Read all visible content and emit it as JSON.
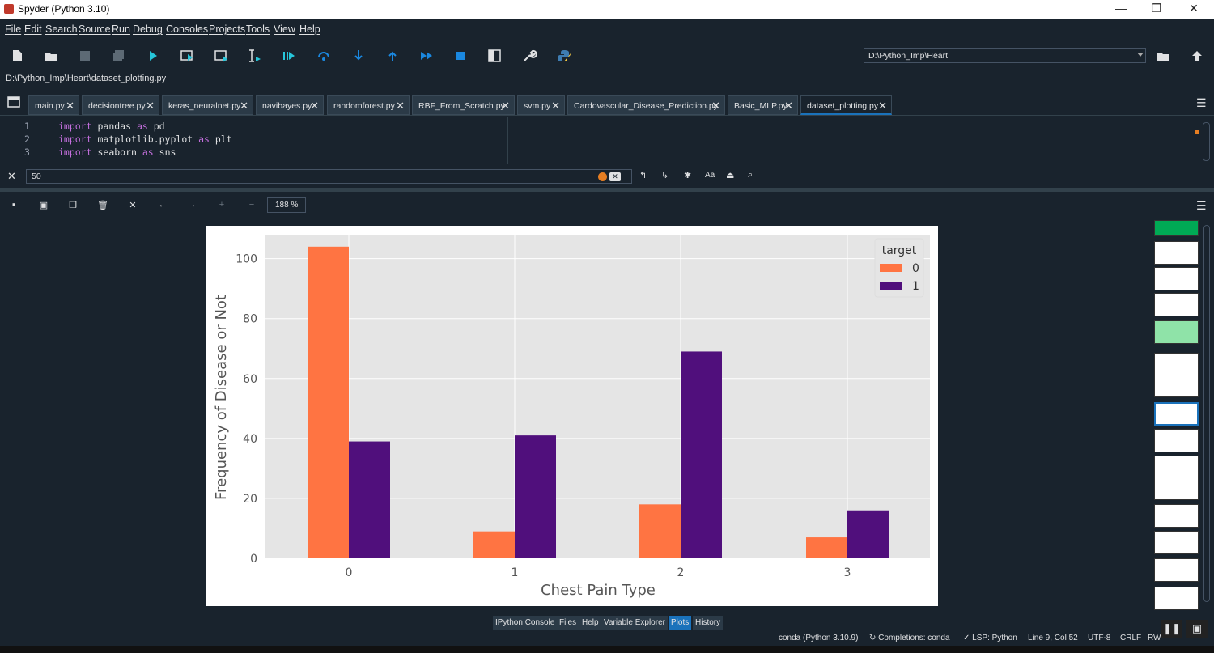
{
  "window": {
    "title": "Spyder (Python 3.10)"
  },
  "menu": [
    "File",
    "Edit",
    "Search",
    "Source",
    "Run",
    "Debug",
    "Consoles",
    "Projects",
    "Tools",
    "View",
    "Help"
  ],
  "toolbar": {
    "working_dir": "D:\\Python_Imp\\Heart"
  },
  "editor": {
    "file_path": "D:\\Python_Imp\\Heart\\dataset_plotting.py",
    "tabs": [
      "main.py",
      "decisiontree.py",
      "keras_neuralnet.py",
      "navibayes.py",
      "randomforest.py",
      "RBF_From_Scratch.py",
      "svm.py",
      "Cardovascular_Disease_Prediction.py",
      "Basic_MLP.py",
      "dataset_plotting.py"
    ],
    "active_tab": "dataset_plotting.py",
    "line_numbers": [
      "1",
      "2",
      "3"
    ],
    "lines": [
      {
        "kw1": "import",
        "mod": " pandas ",
        "kw2": "as",
        "alias": " pd"
      },
      {
        "kw1": "import",
        "mod": " matplotlib.pyplot ",
        "kw2": "as",
        "alias": " plt"
      },
      {
        "kw1": "import",
        "mod": " seaborn ",
        "kw2": "as",
        "alias": " sns"
      }
    ]
  },
  "find": {
    "value": "50",
    "case_label": "Aa"
  },
  "plots": {
    "zoom": "188 %"
  },
  "chart_data": {
    "type": "bar",
    "title": "",
    "xlabel": "Chest Pain Type",
    "ylabel": "Frequency of Disease or Not",
    "categories": [
      "0",
      "1",
      "2",
      "3"
    ],
    "series": [
      {
        "name": "0",
        "color": "#ff7442",
        "values": [
          104,
          9,
          18,
          7
        ]
      },
      {
        "name": "1",
        "color": "#500f7c",
        "values": [
          39,
          41,
          69,
          16
        ]
      }
    ],
    "ylim": [
      0,
      108
    ],
    "yticks": [
      0,
      20,
      40,
      60,
      80,
      100
    ],
    "legend_title": "target",
    "legend_position": "top-right",
    "grid": true
  },
  "bottom_tabs": [
    "IPython Console",
    "Files",
    "Help",
    "Variable Explorer",
    "Plots",
    "History"
  ],
  "active_bottom_tab": "Plots",
  "status": {
    "env": "conda (Python 3.10.9)",
    "completions": "Completions: conda",
    "lsp": "LSP: Python",
    "position": "Line 9, Col 52",
    "encoding": "UTF-8",
    "eol": "CRLF",
    "rw": "RW"
  }
}
